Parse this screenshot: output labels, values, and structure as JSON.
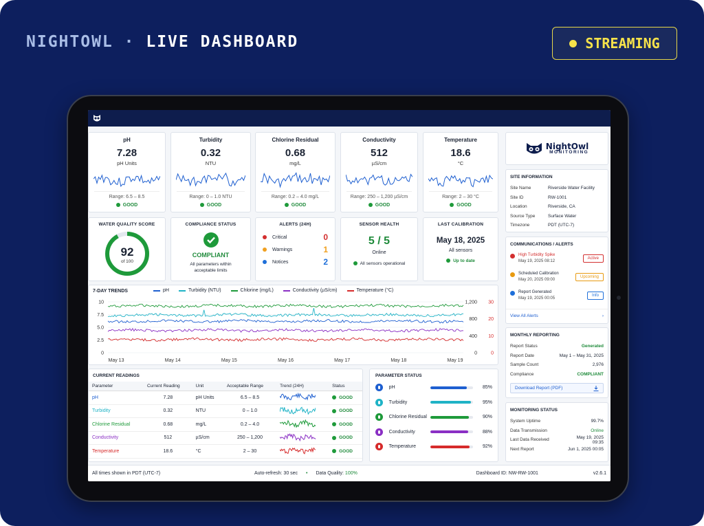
{
  "brand": {
    "name": "NIGHTOWL",
    "sep": "·",
    "page": "LIVE DASHBOARD"
  },
  "streaming": "STREAMING",
  "metrics": [
    {
      "title": "pH",
      "value": "7.28",
      "unit": "pH Units",
      "range": "Range: 6.5 – 8.5",
      "status": "GOOD"
    },
    {
      "title": "Turbidity",
      "value": "0.32",
      "unit": "NTU",
      "range": "Range: 0 – 1.0 NTU",
      "status": "GOOD"
    },
    {
      "title": "Chlorine Residual",
      "value": "0.68",
      "unit": "mg/L",
      "range": "Range: 0.2 – 4.0 mg/L",
      "status": "GOOD"
    },
    {
      "title": "Conductivity",
      "value": "512",
      "unit": "µS/cm",
      "range": "Range: 250 – 1,200 µS/cm",
      "status": "GOOD"
    },
    {
      "title": "Temperature",
      "value": "18.6",
      "unit": "°C",
      "range": "Range: 2 – 30 °C",
      "status": "GOOD"
    }
  ],
  "score": {
    "title": "WATER QUALITY SCORE",
    "value": "92",
    "of": "of 100",
    "pct": 0.92
  },
  "compliance": {
    "title": "COMPLIANCE STATUS",
    "status": "COMPLIANT",
    "desc1": "All parameters within",
    "desc2": "acceptable limits"
  },
  "alerts": {
    "title": "ALERTS (24H)",
    "items": [
      {
        "label": "Critical",
        "count": "0",
        "color": "#d32f2f"
      },
      {
        "label": "Warnings",
        "count": "1",
        "color": "#f0a020"
      },
      {
        "label": "Notices",
        "count": "2",
        "color": "#1e6fd9"
      }
    ]
  },
  "sensor": {
    "title": "SENSOR HEALTH",
    "value": "5 / 5",
    "label": "Online",
    "note": "All sensors operational"
  },
  "calibration": {
    "title": "LAST CALIBRATION",
    "date": "May 18, 2025",
    "label": "All sensors",
    "note": "Up to date"
  },
  "trends": {
    "title": "7-DAY TRENDS",
    "legend": [
      {
        "name": "pH",
        "color": "#1e5fd0"
      },
      {
        "name": "Turbidity (NTU)",
        "color": "#1fb3c6"
      },
      {
        "name": "Chlorine (mg/L)",
        "color": "#1e9a3a"
      },
      {
        "name": "Conductivity (µS/cm)",
        "color": "#8a2fc4"
      },
      {
        "name": "Temperature (°C)",
        "color": "#d62b2b"
      }
    ],
    "yleft": [
      "10",
      "7.5",
      "5.0",
      "2.5",
      "0"
    ],
    "yright1": [
      "1,200",
      "800",
      "400",
      "0"
    ],
    "yright2": [
      "30",
      "20",
      "10",
      "0"
    ],
    "x": [
      "May 13",
      "May 14",
      "May 15",
      "May 16",
      "May 17",
      "May 18",
      "May 19"
    ]
  },
  "readings": {
    "title": "CURRENT READINGS",
    "headers": [
      "Parameter",
      "Current Reading",
      "Unit",
      "Acceptable Range",
      "Trend (24H)",
      "Status"
    ],
    "rows": [
      {
        "p": "pH",
        "v": "7.28",
        "u": "pH Units",
        "r": "6.5 – 8.5",
        "s": "GOOD",
        "color": "#1e5fd0"
      },
      {
        "p": "Turbidity",
        "v": "0.32",
        "u": "NTU",
        "r": "0 – 1.0",
        "s": "GOOD",
        "color": "#1fb3c6"
      },
      {
        "p": "Chlorine Residual",
        "v": "0.68",
        "u": "mg/L",
        "r": "0.2 – 4.0",
        "s": "GOOD",
        "color": "#1e9a3a"
      },
      {
        "p": "Conductivity",
        "v": "512",
        "u": "µS/cm",
        "r": "250 – 1,200",
        "s": "GOOD",
        "color": "#8a2fc4"
      },
      {
        "p": "Temperature",
        "v": "18.6",
        "u": "°C",
        "r": "2 – 30",
        "s": "GOOD",
        "color": "#d62b2b"
      }
    ]
  },
  "pstatus": {
    "title": "PARAMETER STATUS",
    "items": [
      {
        "name": "pH",
        "pct": "85%",
        "val": 0.85,
        "color": "#1e5fd0"
      },
      {
        "name": "Turbidity",
        "pct": "95%",
        "val": 0.95,
        "color": "#1fb3c6"
      },
      {
        "name": "Chlorine Residual",
        "pct": "90%",
        "val": 0.9,
        "color": "#1e9a3a"
      },
      {
        "name": "Conductivity",
        "pct": "88%",
        "val": 0.88,
        "color": "#8a2fc4"
      },
      {
        "name": "Temperature",
        "pct": "92%",
        "val": 0.92,
        "color": "#d62b2b"
      }
    ]
  },
  "logo": {
    "line1": "NightOwl",
    "line2": "MONITORING"
  },
  "site": {
    "title": "SITE INFORMATION",
    "rows": [
      {
        "k": "Site Name",
        "v": "Riverside Water Facility"
      },
      {
        "k": "Site ID",
        "v": "RW-1001"
      },
      {
        "k": "Location",
        "v": "Riverside, CA"
      },
      {
        "k": "Source Type",
        "v": "Surface Water"
      },
      {
        "k": "Timezone",
        "v": "PDT (UTC-7)"
      }
    ]
  },
  "comms": {
    "title": "COMMUNICATIONS / ALERTS",
    "items": [
      {
        "title": "High Turbidity Spike",
        "time": "May 19, 2025 08:12",
        "badge": "Active",
        "color": "#d32f2f"
      },
      {
        "title": "Scheduled Calibration",
        "time": "May 20, 2025 09:00",
        "badge": "Upcoming",
        "color": "#e89a10"
      },
      {
        "title": "Report Generated",
        "time": "May 19, 2025 00:05",
        "badge": "Info",
        "color": "#1e6fd9"
      }
    ],
    "link": "View All Alerts"
  },
  "monthly": {
    "title": "MONTHLY REPORTING",
    "rows": [
      {
        "k": "Report Status",
        "v": "Generated",
        "c": "#1e8a3a"
      },
      {
        "k": "Report Date",
        "v": "May 1 – May 31, 2025",
        "c": "#1b2333"
      },
      {
        "k": "Sample Count",
        "v": "2,976",
        "c": "#1b2333"
      },
      {
        "k": "Compliance",
        "v": "COMPLIANT",
        "c": "#1e8a3a"
      }
    ],
    "button": "Download Report (PDF)"
  },
  "monitoring": {
    "title": "MONITORING STATUS",
    "rows": [
      {
        "k": "System Uptime",
        "v": "99.7%",
        "c": "#1b2333"
      },
      {
        "k": "Data Transmission",
        "v": "Online",
        "c": "#1e8a3a"
      },
      {
        "k": "Last Data Received",
        "v": "May 19, 2025 09:35",
        "c": "#1b2333"
      },
      {
        "k": "Next Report",
        "v": "Jun 1, 2025 00:05",
        "c": "#1b2333"
      }
    ]
  },
  "footer": {
    "tz": "All times shown in PDT (UTC-7)",
    "refresh_label": "Auto-refresh:",
    "refresh": "30 sec",
    "dq_label": "Data Quality:",
    "dq": "100%",
    "dashboard_id": "Dashboard ID: NW-RW-1001",
    "version": "v2.6.1"
  }
}
